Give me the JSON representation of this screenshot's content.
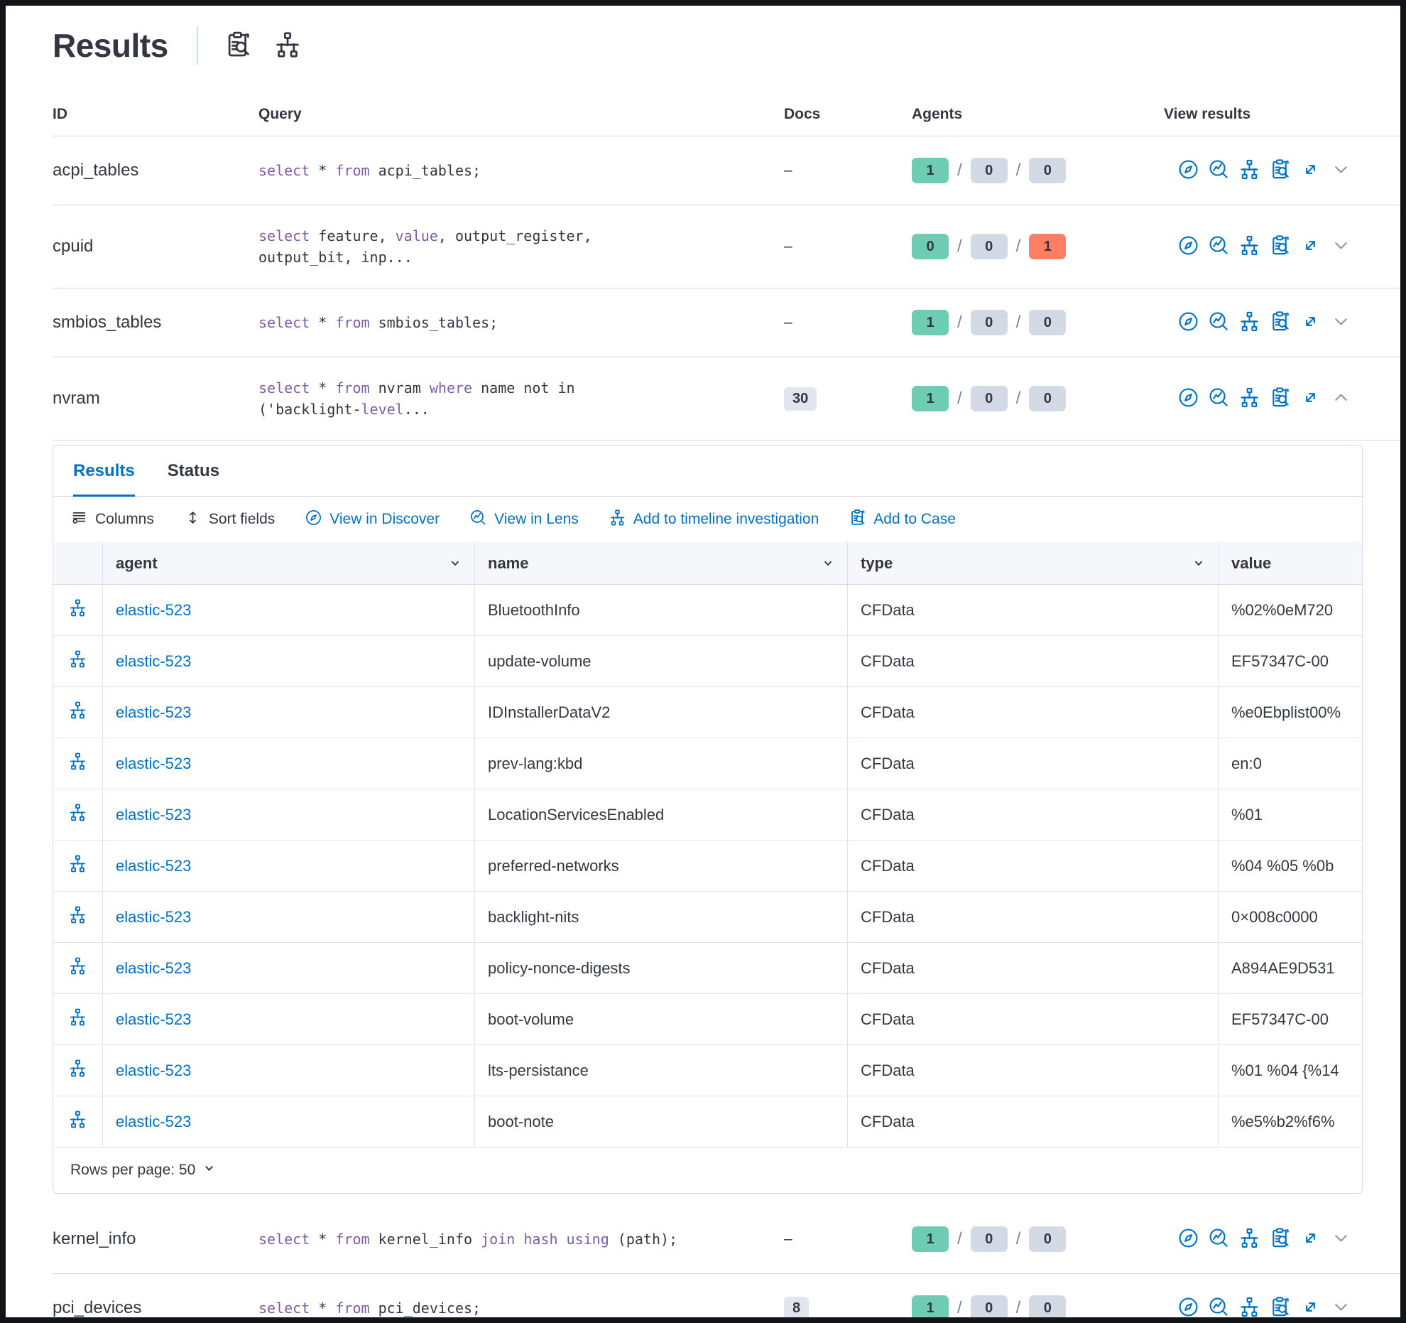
{
  "title": "Results",
  "header_icons": [
    "inspect-icon",
    "timeline-icon"
  ],
  "colors": {
    "accent_blue": "#0071C2",
    "keyword_purple": "#7D5CA6",
    "badge_green": "#6DCCB1",
    "badge_gray": "#D3DAE6",
    "badge_red": "#FD7E62",
    "text": "#343741",
    "border": "#D3DAE6",
    "grid_header_bg": "#F5F7FA"
  },
  "outer_table": {
    "headers": [
      "ID",
      "Query",
      "Docs",
      "Agents",
      "View results"
    ],
    "view_results_icons": [
      "discover-icon",
      "lens-icon",
      "timeline-icon",
      "case-icon",
      "expand-icon"
    ],
    "rows": [
      {
        "id": "acpi_tables",
        "query_lines": [
          [
            [
              "select",
              1
            ],
            [
              " ",
              0
            ],
            [
              "*",
              0
            ],
            [
              " ",
              0
            ],
            [
              "from",
              1
            ],
            [
              " acpi_tables;",
              0
            ]
          ]
        ],
        "docs": {
          "kind": "dash",
          "text": "–"
        },
        "agents": [
          [
            "1",
            "green"
          ],
          [
            "0",
            "gray"
          ],
          [
            "0",
            "gray"
          ]
        ],
        "chevron": "down",
        "expanded": false
      },
      {
        "id": "cpuid",
        "query_lines": [
          [
            [
              "select",
              1
            ],
            [
              " feature, ",
              0
            ],
            [
              "value",
              1
            ],
            [
              ", output_register,",
              0
            ]
          ],
          [
            [
              "output_bit, inp...",
              0
            ]
          ]
        ],
        "docs": {
          "kind": "dash",
          "text": "–"
        },
        "agents": [
          [
            "0",
            "green"
          ],
          [
            "0",
            "gray"
          ],
          [
            "1",
            "red"
          ]
        ],
        "chevron": "down",
        "expanded": false
      },
      {
        "id": "smbios_tables",
        "query_lines": [
          [
            [
              "select",
              1
            ],
            [
              " ",
              0
            ],
            [
              "*",
              0
            ],
            [
              " ",
              0
            ],
            [
              "from",
              1
            ],
            [
              " smbios_tables;",
              0
            ]
          ]
        ],
        "docs": {
          "kind": "dash",
          "text": "–"
        },
        "agents": [
          [
            "1",
            "green"
          ],
          [
            "0",
            "gray"
          ],
          [
            "0",
            "gray"
          ]
        ],
        "chevron": "down",
        "expanded": false
      },
      {
        "id": "nvram",
        "query_lines": [
          [
            [
              "select",
              1
            ],
            [
              " ",
              0
            ],
            [
              "*",
              0
            ],
            [
              " ",
              0
            ],
            [
              "from",
              1
            ],
            [
              " nvram ",
              0
            ],
            [
              "where",
              1
            ],
            [
              " name not in",
              0
            ]
          ],
          [
            [
              "('backlight-",
              0
            ],
            [
              "level",
              1
            ],
            [
              "...",
              0
            ]
          ]
        ],
        "docs": {
          "kind": "badge",
          "text": "30"
        },
        "agents": [
          [
            "1",
            "green"
          ],
          [
            "0",
            "gray"
          ],
          [
            "0",
            "gray"
          ]
        ],
        "chevron": "up",
        "expanded": true
      },
      {
        "id": "kernel_info",
        "query_lines": [
          [
            [
              "select",
              1
            ],
            [
              " ",
              0
            ],
            [
              "*",
              0
            ],
            [
              " ",
              0
            ],
            [
              "from",
              1
            ],
            [
              " kernel_info ",
              0
            ],
            [
              "join",
              1
            ],
            [
              " ",
              0
            ],
            [
              "hash",
              1
            ],
            [
              " ",
              0
            ],
            [
              "using",
              1
            ],
            [
              " (path);",
              0
            ]
          ]
        ],
        "docs": {
          "kind": "dash",
          "text": "–"
        },
        "agents": [
          [
            "1",
            "green"
          ],
          [
            "0",
            "gray"
          ],
          [
            "0",
            "gray"
          ]
        ],
        "chevron": "down",
        "expanded": false
      },
      {
        "id": "pci_devices",
        "query_lines": [
          [
            [
              "select",
              1
            ],
            [
              " ",
              0
            ],
            [
              "*",
              0
            ],
            [
              " ",
              0
            ],
            [
              "from",
              1
            ],
            [
              " pci_devices;",
              0
            ]
          ]
        ],
        "docs": {
          "kind": "badge",
          "text": "8"
        },
        "agents": [
          [
            "1",
            "green"
          ],
          [
            "0",
            "gray"
          ],
          [
            "0",
            "gray"
          ]
        ],
        "chevron": "down",
        "expanded": false
      }
    ]
  },
  "expanded_panel": {
    "tabs": [
      {
        "label": "Results",
        "active": true
      },
      {
        "label": "Status",
        "active": false
      }
    ],
    "toolbar": [
      {
        "label": "Columns",
        "icon": "columns-icon",
        "blue": false
      },
      {
        "label": "Sort fields",
        "icon": "sort-icon",
        "blue": false
      },
      {
        "label": "View in Discover",
        "icon": "discover-icon",
        "blue": true
      },
      {
        "label": "View in Lens",
        "icon": "lens-icon",
        "blue": true
      },
      {
        "label": "Add to timeline investigation",
        "icon": "timeline-icon",
        "blue": true
      },
      {
        "label": "Add to Case",
        "icon": "case-icon",
        "blue": true
      }
    ],
    "grid": {
      "columns": [
        {
          "label": "agent",
          "sortable": true
        },
        {
          "label": "name",
          "sortable": true
        },
        {
          "label": "type",
          "sortable": true
        },
        {
          "label": "value",
          "sortable": false
        }
      ],
      "rows": [
        {
          "agent": "elastic-523",
          "name": "BluetoothInfo",
          "type": "CFData",
          "value": "%02%0eM720"
        },
        {
          "agent": "elastic-523",
          "name": "update-volume",
          "type": "CFData",
          "value": "EF57347C-00"
        },
        {
          "agent": "elastic-523",
          "name": "IDInstallerDataV2",
          "type": "CFData",
          "value": "%e0Ebplist00%"
        },
        {
          "agent": "elastic-523",
          "name": "prev-lang:kbd",
          "type": "CFData",
          "value": "en:0"
        },
        {
          "agent": "elastic-523",
          "name": "LocationServicesEnabled",
          "type": "CFData",
          "value": "%01"
        },
        {
          "agent": "elastic-523",
          "name": "preferred-networks",
          "type": "CFData",
          "value": "%04 %05 %0b"
        },
        {
          "agent": "elastic-523",
          "name": "backlight-nits",
          "type": "CFData",
          "value": "0×008c0000"
        },
        {
          "agent": "elastic-523",
          "name": "policy-nonce-digests",
          "type": "CFData",
          "value": "A894AE9D531"
        },
        {
          "agent": "elastic-523",
          "name": "boot-volume",
          "type": "CFData",
          "value": "EF57347C-00"
        },
        {
          "agent": "elastic-523",
          "name": "lts-persistance",
          "type": "CFData",
          "value": "%01 %04 {%14"
        },
        {
          "agent": "elastic-523",
          "name": "boot-note",
          "type": "CFData",
          "value": "%e5%b2%f6%"
        }
      ]
    },
    "footer": {
      "rows_per_page_label": "Rows per page: 50"
    }
  }
}
